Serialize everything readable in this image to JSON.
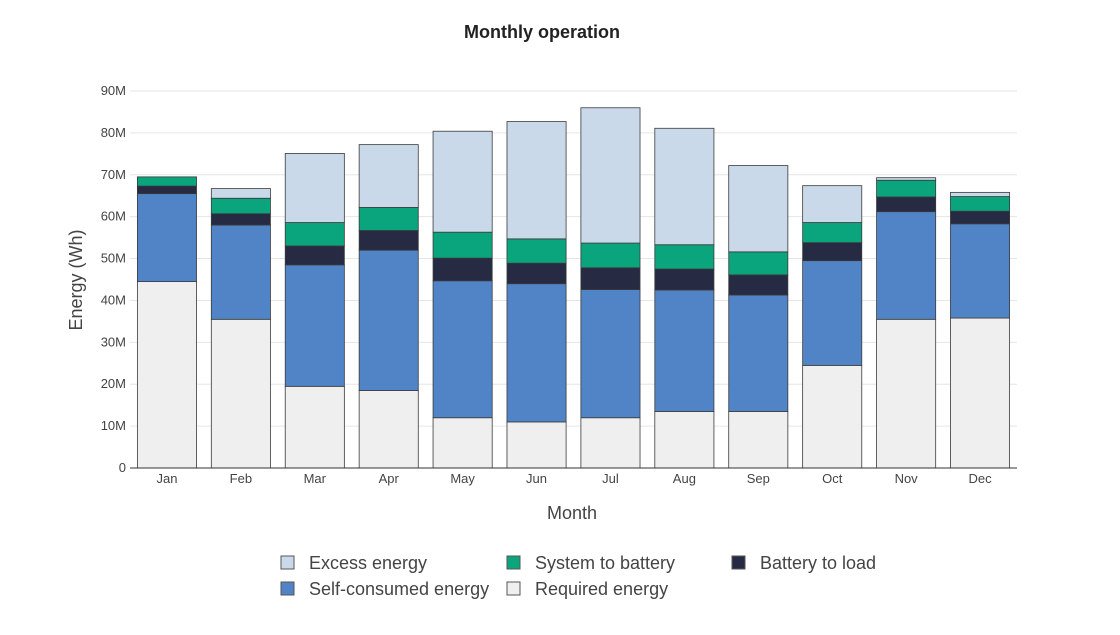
{
  "chart_data": {
    "type": "bar",
    "stacked": true,
    "title": "Monthly operation",
    "xlabel": "Month",
    "ylabel": "Energy (Wh)",
    "ylim": [
      0,
      90000000
    ],
    "yticks": [
      {
        "value": 0,
        "label": "0"
      },
      {
        "value": 10000000,
        "label": "10M"
      },
      {
        "value": 20000000,
        "label": "20M"
      },
      {
        "value": 30000000,
        "label": "30M"
      },
      {
        "value": 40000000,
        "label": "40M"
      },
      {
        "value": 50000000,
        "label": "50M"
      },
      {
        "value": 60000000,
        "label": "60M"
      },
      {
        "value": 70000000,
        "label": "70M"
      },
      {
        "value": 80000000,
        "label": "80M"
      },
      {
        "value": 90000000,
        "label": "90M"
      }
    ],
    "grid": true,
    "legend_position": "bottom",
    "categories": [
      "Jan",
      "Feb",
      "Mar",
      "Apr",
      "May",
      "Jun",
      "Jul",
      "Aug",
      "Sep",
      "Oct",
      "Nov",
      "Dec"
    ],
    "series": [
      {
        "name": "Required energy",
        "color": "#efefef",
        "values": [
          44500000,
          35500000,
          19500000,
          18500000,
          12000000,
          11000000,
          12000000,
          13500000,
          13500000,
          24500000,
          35500000,
          35800000
        ]
      },
      {
        "name": "Self-consumed energy",
        "color": "#5184c6",
        "values": [
          21000000,
          22500000,
          29000000,
          33500000,
          32700000,
          33000000,
          30600000,
          29000000,
          27800000,
          25000000,
          25700000,
          22500000
        ]
      },
      {
        "name": "Battery to load",
        "color": "#262a42",
        "values": [
          1800000,
          2700000,
          4500000,
          4700000,
          5400000,
          4900000,
          5200000,
          5000000,
          4800000,
          4300000,
          3500000,
          3000000
        ]
      },
      {
        "name": "System to battery",
        "color": "#0aa57c",
        "values": [
          2200000,
          3700000,
          5600000,
          5500000,
          6200000,
          5800000,
          5900000,
          5800000,
          5500000,
          4800000,
          4000000,
          3500000
        ]
      },
      {
        "name": "Excess energy",
        "color": "#c9d9ea",
        "values": [
          0,
          2300000,
          16500000,
          15000000,
          24100000,
          28000000,
          32300000,
          27800000,
          20600000,
          8800000,
          600000,
          1000000
        ]
      }
    ],
    "legend_order": [
      "Excess energy",
      "System to battery",
      "Battery to load",
      "Self-consumed energy",
      "Required energy"
    ]
  }
}
